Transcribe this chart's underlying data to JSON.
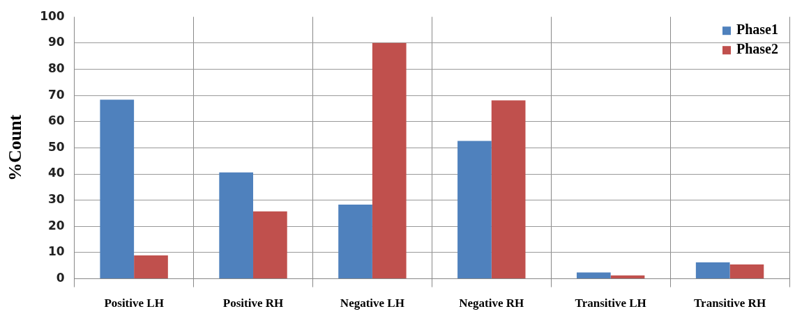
{
  "chart_data": {
    "type": "bar",
    "ylabel": "%Count",
    "categories": [
      "Positive LH",
      "Positive RH",
      "Negative LH",
      "Negative RH",
      "Transitive LH",
      "Transitive RH"
    ],
    "series": [
      {
        "name": "Phase1",
        "color": "#4f81bd",
        "values": [
          68.4,
          40.6,
          28.3,
          52.6,
          2.4,
          6.3
        ]
      },
      {
        "name": "Phase2",
        "color": "#c0504d",
        "values": [
          8.9,
          25.7,
          90,
          68.1,
          1.3,
          5.5
        ]
      }
    ],
    "ylim": [
      0,
      100
    ],
    "yticks": [
      0,
      10,
      20,
      30,
      40,
      50,
      60,
      70,
      80,
      90,
      100
    ],
    "grid": true,
    "legend": "top right"
  }
}
